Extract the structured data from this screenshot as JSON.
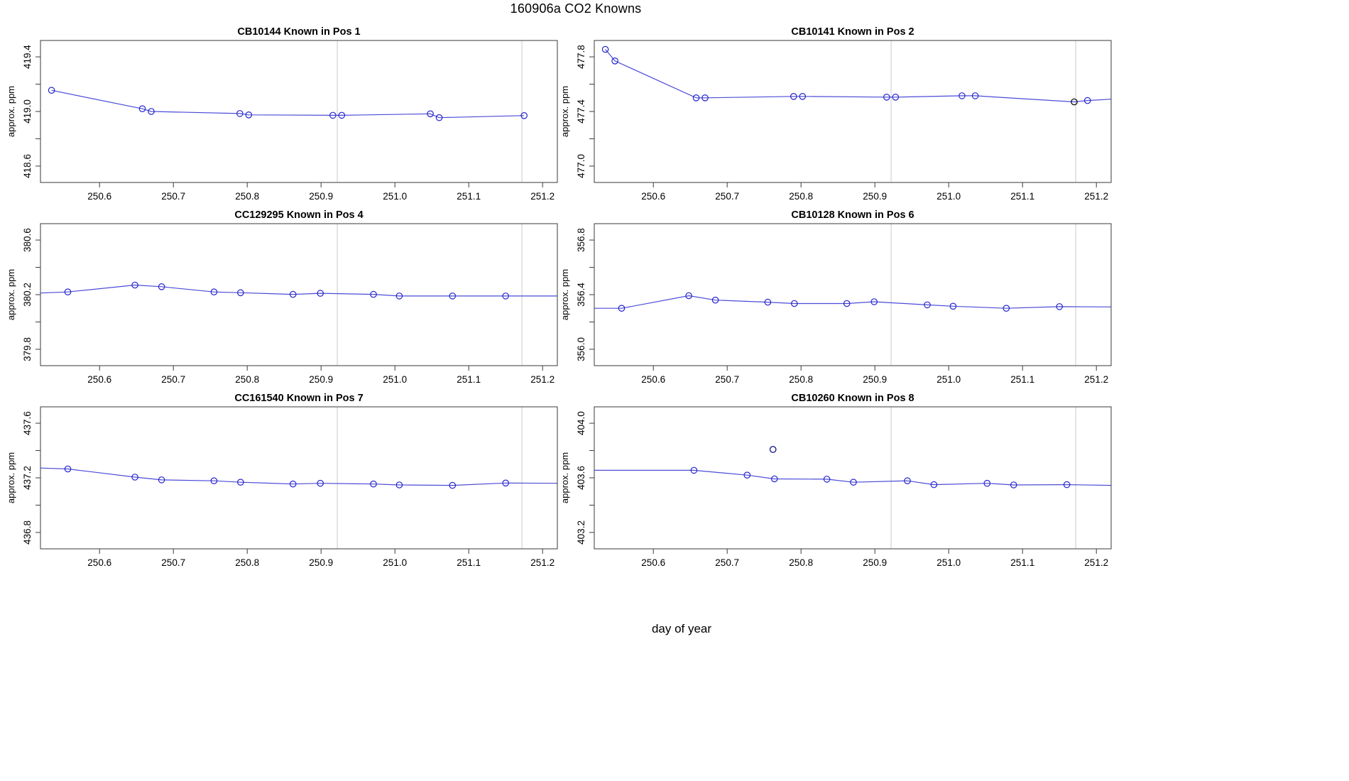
{
  "figure": {
    "title": "160906a   CO2 Knowns",
    "xlabel": "day of year"
  },
  "colors": {
    "series_blue": "#2b2bd0",
    "marker_blue": "#2424cc",
    "flag_black": "#000000",
    "flag_navy": "#1f1f8f",
    "ref_line_gray": "#d3d3d3",
    "box_stroke": "#3a3a3a",
    "text_black": "#000000"
  },
  "chart_data": [
    {
      "type": "line",
      "title": "CB10144    Known in Pos 1",
      "sample_id": "CB10144",
      "position_label": "Known in Pos 1",
      "ylabel": "approx. ppm",
      "xlim": [
        250.52,
        251.22
      ],
      "ylim": [
        418.48,
        419.52
      ],
      "xticks": [
        250.6,
        250.7,
        250.8,
        250.9,
        251.0,
        251.1,
        251.2
      ],
      "yticks_labeled": [
        418.6,
        419.0,
        419.4
      ],
      "yticks_minor": [
        418.8,
        419.2
      ],
      "vlines": [
        250.922,
        251.172
      ],
      "lead_in": null,
      "tail": null,
      "markers": [
        [
          250.535,
          419.155
        ],
        [
          250.658,
          419.02
        ],
        [
          250.67,
          419.0
        ],
        [
          250.79,
          418.985
        ],
        [
          250.802,
          418.975
        ],
        [
          250.916,
          418.972
        ],
        [
          250.928,
          418.972
        ],
        [
          251.048,
          418.983
        ],
        [
          251.06,
          418.955
        ],
        [
          251.175,
          418.97
        ]
      ],
      "special_markers": []
    },
    {
      "type": "line",
      "title": "CB10141    Known in Pos 2",
      "sample_id": "CB10141",
      "position_label": "Known in Pos 2",
      "ylabel": "approx. ppm",
      "xlim": [
        250.52,
        251.22
      ],
      "ylim": [
        476.88,
        477.92
      ],
      "xticks": [
        250.6,
        250.7,
        250.8,
        250.9,
        251.0,
        251.1,
        251.2
      ],
      "yticks_labeled": [
        477.0,
        477.4,
        477.8
      ],
      "yticks_minor": [
        477.2,
        477.6
      ],
      "vlines": [
        250.922,
        251.172
      ],
      "lead_in": null,
      "tail": [
        251.22,
        477.49
      ],
      "markers": [
        [
          250.535,
          477.855
        ],
        [
          250.548,
          477.77
        ],
        [
          250.658,
          477.5
        ],
        [
          250.67,
          477.5
        ],
        [
          250.79,
          477.51
        ],
        [
          250.802,
          477.51
        ],
        [
          250.916,
          477.505
        ],
        [
          250.928,
          477.505
        ],
        [
          251.018,
          477.515
        ],
        [
          251.036,
          477.515
        ],
        [
          251.17,
          477.47
        ],
        [
          251.188,
          477.48
        ]
      ],
      "special_markers": [
        {
          "x": 251.17,
          "y": 477.47,
          "color_key": "flag_black"
        }
      ]
    },
    {
      "type": "line",
      "title": "CC129295    Known in Pos 4",
      "sample_id": "CC129295",
      "position_label": "Known in Pos 4",
      "ylabel": "approx. ppm",
      "xlim": [
        250.52,
        251.22
      ],
      "ylim": [
        379.68,
        380.72
      ],
      "xticks": [
        250.6,
        250.7,
        250.8,
        250.9,
        251.0,
        251.1,
        251.2
      ],
      "yticks_labeled": [
        379.8,
        380.2,
        380.6
      ],
      "yticks_minor": [
        380.0,
        380.4
      ],
      "vlines": [
        250.922,
        251.172
      ],
      "lead_in": [
        250.52,
        380.212
      ],
      "tail": [
        251.22,
        380.19
      ],
      "markers": [
        [
          250.557,
          380.22
        ],
        [
          250.648,
          380.27
        ],
        [
          250.684,
          380.258
        ],
        [
          250.755,
          380.22
        ],
        [
          250.791,
          380.214
        ],
        [
          250.862,
          380.202
        ],
        [
          250.899,
          380.21
        ],
        [
          250.971,
          380.202
        ],
        [
          251.006,
          380.19
        ],
        [
          251.078,
          380.19
        ],
        [
          251.15,
          380.19
        ]
      ],
      "special_markers": []
    },
    {
      "type": "line",
      "title": "CB10128    Known in Pos 6",
      "sample_id": "CB10128",
      "position_label": "Known in Pos 6",
      "ylabel": "approx. ppm",
      "xlim": [
        250.52,
        251.22
      ],
      "ylim": [
        355.88,
        356.92
      ],
      "xticks": [
        250.6,
        250.7,
        250.8,
        250.9,
        251.0,
        251.1,
        251.2
      ],
      "yticks_labeled": [
        356.0,
        356.4,
        356.8
      ],
      "yticks_minor": [
        356.2,
        356.6
      ],
      "vlines": [
        250.922,
        251.172
      ],
      "lead_in": [
        250.52,
        356.3
      ],
      "tail": [
        251.22,
        356.31
      ],
      "markers": [
        [
          250.557,
          356.3
        ],
        [
          250.648,
          356.392
        ],
        [
          250.684,
          356.36
        ],
        [
          250.755,
          356.345
        ],
        [
          250.791,
          356.335
        ],
        [
          250.862,
          356.335
        ],
        [
          250.899,
          356.348
        ],
        [
          250.971,
          356.325
        ],
        [
          251.006,
          356.315
        ],
        [
          251.078,
          356.3
        ],
        [
          251.15,
          356.312
        ]
      ],
      "special_markers": []
    },
    {
      "type": "line",
      "title": "CC161540    Known in Pos 7",
      "sample_id": "CC161540",
      "position_label": "Known in Pos 7",
      "ylabel": "approx. ppm",
      "xlim": [
        250.52,
        251.22
      ],
      "ylim": [
        436.68,
        437.72
      ],
      "xticks": [
        250.6,
        250.7,
        250.8,
        250.9,
        251.0,
        251.1,
        251.2
      ],
      "yticks_labeled": [
        436.8,
        437.2,
        437.6
      ],
      "yticks_minor": [
        437.0,
        437.4
      ],
      "vlines": [
        250.922,
        251.172
      ],
      "lead_in": [
        250.52,
        437.272
      ],
      "tail": [
        251.22,
        437.16
      ],
      "markers": [
        [
          250.557,
          437.265
        ],
        [
          250.648,
          437.205
        ],
        [
          250.684,
          437.185
        ],
        [
          250.755,
          437.178
        ],
        [
          250.791,
          437.168
        ],
        [
          250.862,
          437.155
        ],
        [
          250.899,
          437.16
        ],
        [
          250.971,
          437.155
        ],
        [
          251.006,
          437.148
        ],
        [
          251.078,
          437.145
        ],
        [
          251.15,
          437.162
        ]
      ],
      "special_markers": []
    },
    {
      "type": "line",
      "title": "CB10260    Known in Pos 8",
      "sample_id": "CB10260",
      "position_label": "Known in Pos 8",
      "ylabel": "approx. ppm",
      "xlim": [
        250.52,
        251.22
      ],
      "ylim": [
        403.08,
        404.12
      ],
      "xticks": [
        250.6,
        250.7,
        250.8,
        250.9,
        251.0,
        251.1,
        251.2
      ],
      "yticks_labeled": [
        403.2,
        403.6,
        404.0
      ],
      "yticks_minor": [
        403.4,
        403.8
      ],
      "vlines": [
        250.922,
        251.172
      ],
      "lead_in": [
        250.52,
        403.655
      ],
      "tail": [
        251.22,
        403.545
      ],
      "markers": [
        [
          250.655,
          403.655
        ],
        [
          250.727,
          403.62
        ],
        [
          250.764,
          403.592
        ],
        [
          250.835,
          403.59
        ],
        [
          250.871,
          403.568
        ],
        [
          250.944,
          403.578
        ],
        [
          250.98,
          403.55
        ],
        [
          251.052,
          403.56
        ],
        [
          251.088,
          403.548
        ],
        [
          251.16,
          403.55
        ]
      ],
      "special_markers": [
        {
          "x": 250.762,
          "y": 403.808,
          "color_key": "flag_navy",
          "detached": true
        }
      ]
    }
  ]
}
